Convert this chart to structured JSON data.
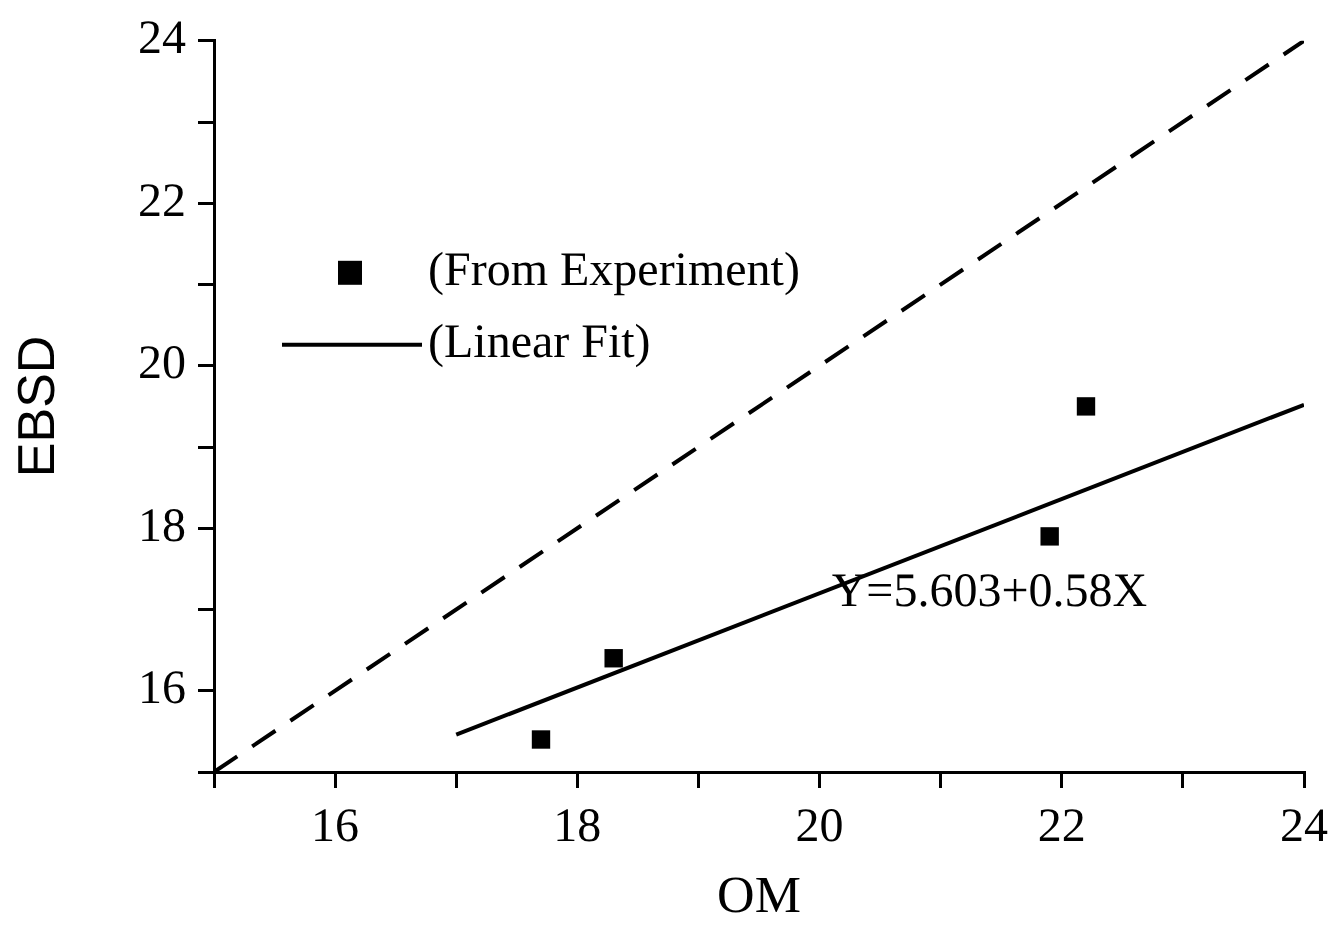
{
  "chart_data": {
    "type": "scatter",
    "xlabel": "OM",
    "ylabel": "EBSD",
    "xlim": [
      15,
      24
    ],
    "ylim": [
      15,
      24
    ],
    "xticks": [
      {
        "value": 15,
        "label": null
      },
      16,
      {
        "value": 17,
        "label": null
      },
      18,
      {
        "value": 19,
        "label": null
      },
      20,
      {
        "value": 21,
        "label": null
      },
      22,
      {
        "value": 23,
        "label": null
      },
      24
    ],
    "yticks": [
      {
        "value": 15,
        "label": null
      },
      16,
      {
        "value": 17,
        "label": null
      },
      18,
      {
        "value": 19,
        "label": null
      },
      20,
      {
        "value": 21,
        "label": null
      },
      22,
      {
        "value": 23,
        "label": null
      },
      24
    ],
    "grid": false,
    "legend": "top left",
    "series": [
      {
        "name": "(From Experiment)",
        "marker": "square",
        "color": "#000000",
        "x": [
          17.7,
          18.3,
          21.9,
          22.2
        ],
        "values": [
          15.4,
          16.4,
          17.9,
          19.5
        ]
      },
      {
        "name": "(Linear Fit)",
        "type": "line",
        "marker": "none",
        "line_style": "solid",
        "color": "#000000",
        "x": [
          17,
          24
        ],
        "values": [
          15.46,
          19.52
        ]
      },
      {
        "type": "line",
        "marker": "none",
        "line_style": "dashed",
        "color": "#000000",
        "x": [
          15,
          24
        ],
        "values": [
          15,
          24
        ]
      }
    ],
    "annotations": [
      {
        "text": "Y=5.603+0.58X",
        "x": 20.1,
        "y": 17.2
      }
    ]
  }
}
